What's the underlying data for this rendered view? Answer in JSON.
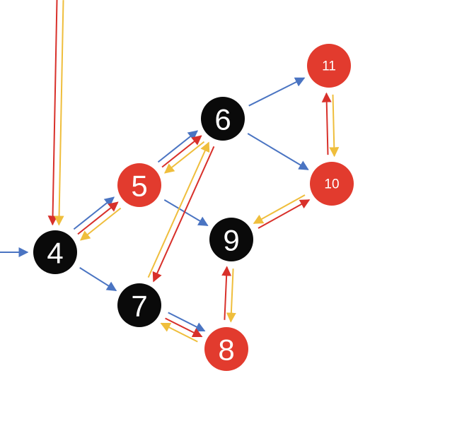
{
  "colors": {
    "black_node": "#0a0a0a",
    "red_node": "#e23b2e",
    "node_text": "#ffffff",
    "blue_arrow": "#4a74c2",
    "red_arrow": "#d8302a",
    "yellow_arrow": "#efbe3c"
  },
  "nodes": [
    {
      "id": "4",
      "label": "4",
      "fill": "black"
    },
    {
      "id": "5",
      "label": "5",
      "fill": "red"
    },
    {
      "id": "6",
      "label": "6",
      "fill": "black"
    },
    {
      "id": "7",
      "label": "7",
      "fill": "black"
    },
    {
      "id": "8",
      "label": "8",
      "fill": "red"
    },
    {
      "id": "9",
      "label": "9",
      "fill": "black"
    },
    {
      "id": "10",
      "label": "10",
      "fill": "red"
    },
    {
      "id": "11",
      "label": "11",
      "fill": "red"
    }
  ],
  "edges": [
    {
      "from": "entry",
      "to": "4",
      "color": "blue"
    },
    {
      "from": "4",
      "to": "5",
      "color": "blue"
    },
    {
      "from": "4",
      "to": "5",
      "color": "red"
    },
    {
      "from": "5",
      "to": "4",
      "color": "yellow"
    },
    {
      "from": "4",
      "to": "7",
      "color": "blue"
    },
    {
      "from": "5",
      "to": "6",
      "color": "blue"
    },
    {
      "from": "5",
      "to": "6",
      "color": "red"
    },
    {
      "from": "6",
      "to": "5",
      "color": "yellow"
    },
    {
      "from": "5",
      "to": "9",
      "color": "blue"
    },
    {
      "from": "6",
      "to": "11",
      "color": "blue"
    },
    {
      "from": "6",
      "to": "10",
      "color": "blue"
    },
    {
      "from": "6",
      "to": "7",
      "color": "red"
    },
    {
      "from": "7",
      "to": "6",
      "color": "yellow"
    },
    {
      "from": "7",
      "to": "8",
      "color": "blue"
    },
    {
      "from": "7",
      "to": "8",
      "color": "red"
    },
    {
      "from": "8",
      "to": "7",
      "color": "yellow"
    },
    {
      "from": "8",
      "to": "9",
      "color": "red"
    },
    {
      "from": "9",
      "to": "8",
      "color": "yellow"
    },
    {
      "from": "9",
      "to": "10",
      "color": "red"
    },
    {
      "from": "10",
      "to": "9",
      "color": "yellow"
    },
    {
      "from": "10",
      "to": "11",
      "color": "red"
    },
    {
      "from": "11",
      "to": "10",
      "color": "yellow"
    },
    {
      "from": "top",
      "to": "4",
      "color": "red"
    },
    {
      "from": "top",
      "to": "4",
      "color": "yellow"
    }
  ]
}
